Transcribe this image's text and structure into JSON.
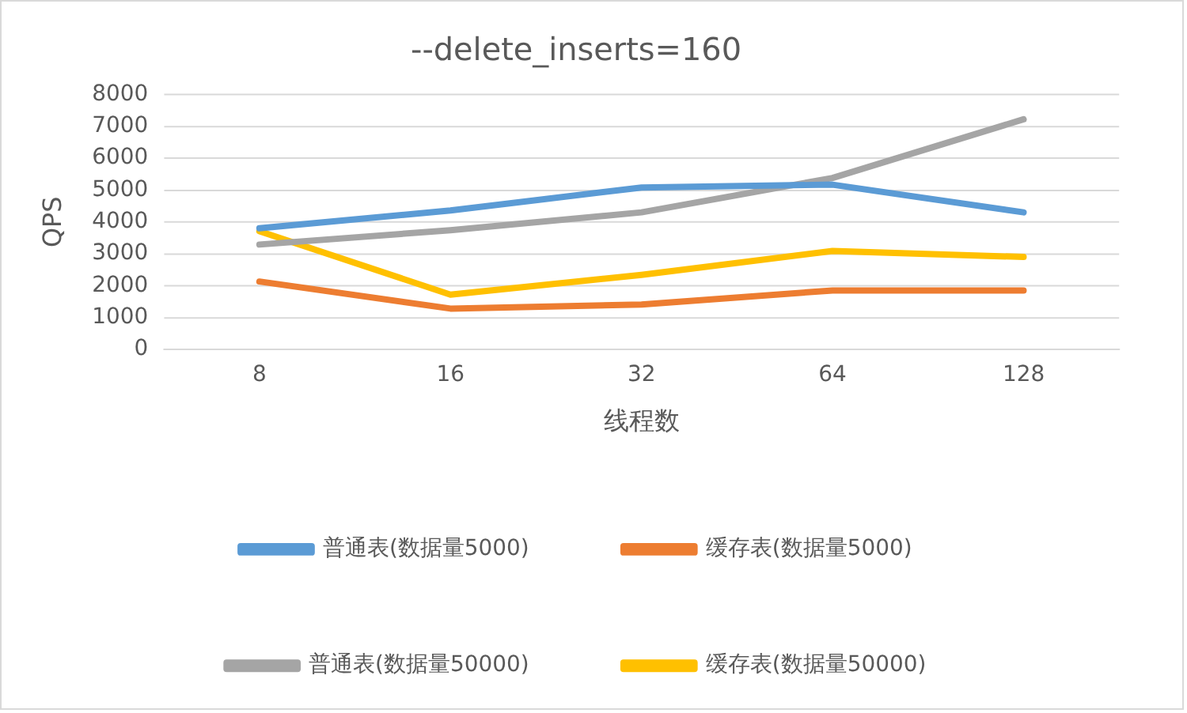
{
  "chart_data": {
    "type": "line",
    "title": "--delete_inserts=160",
    "xlabel": "线程数",
    "ylabel": "QPS",
    "categories": [
      "8",
      "16",
      "32",
      "64",
      "128"
    ],
    "series": [
      {
        "name": "普通表(数据量5000)",
        "color": "#5b9bd5",
        "values": [
          3800,
          4360,
          5080,
          5170,
          4300
        ]
      },
      {
        "name": "缓存表(数据量5000)",
        "color": "#ed7d31",
        "values": [
          2130,
          1280,
          1410,
          1850,
          1850
        ]
      },
      {
        "name": "普通表(数据量50000)",
        "color": "#a5a5a5",
        "values": [
          3290,
          3740,
          4300,
          5380,
          7220
        ]
      },
      {
        "name": "缓存表(数据量50000)",
        "color": "#ffc000",
        "values": [
          3710,
          1720,
          2340,
          3090,
          2900
        ]
      }
    ],
    "ylim": [
      0,
      8000
    ],
    "yticks": [
      0,
      1000,
      2000,
      3000,
      4000,
      5000,
      6000,
      7000,
      8000
    ],
    "grid": "y",
    "legend": "bottom",
    "marker": "none"
  }
}
